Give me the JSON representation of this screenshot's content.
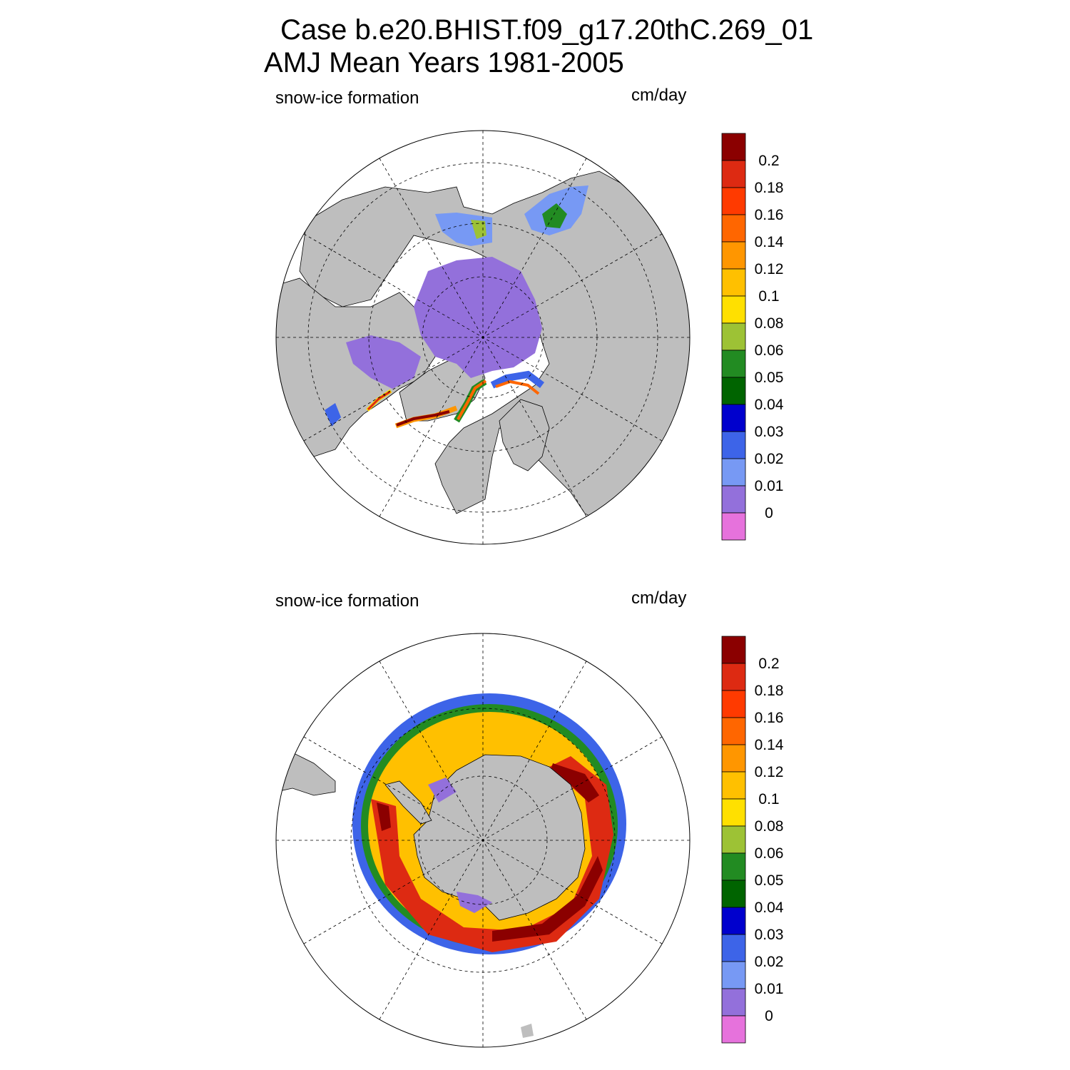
{
  "title": {
    "line1": "Case b.e20.BHIST.f09_g17.20thC.269_01",
    "line2": "AMJ Mean   Years 1981-2005"
  },
  "panels": [
    {
      "variable": "snow-ice formation",
      "units": "cm/day",
      "hemisphere": "north"
    },
    {
      "variable": "snow-ice formation",
      "units": "cm/day",
      "hemisphere": "south"
    }
  ],
  "colorbar": {
    "labels": [
      "0.2",
      "0.18",
      "0.16",
      "0.14",
      "0.12",
      "0.1",
      "0.08",
      "0.06",
      "0.05",
      "0.04",
      "0.03",
      "0.02",
      "0.01",
      "0"
    ],
    "colors": [
      "#8b0000",
      "#dd2a12",
      "#ff3a00",
      "#ff6600",
      "#ff9600",
      "#ffc000",
      "#ffe000",
      "#9dc235",
      "#228b22",
      "#006400",
      "#0000cd",
      "#3d64e8",
      "#7799f4",
      "#9370db",
      "#e672dc"
    ]
  },
  "colors": {
    "land": "#bebebe",
    "ocean": "#ffffff",
    "low_ice": "#9370db"
  }
}
